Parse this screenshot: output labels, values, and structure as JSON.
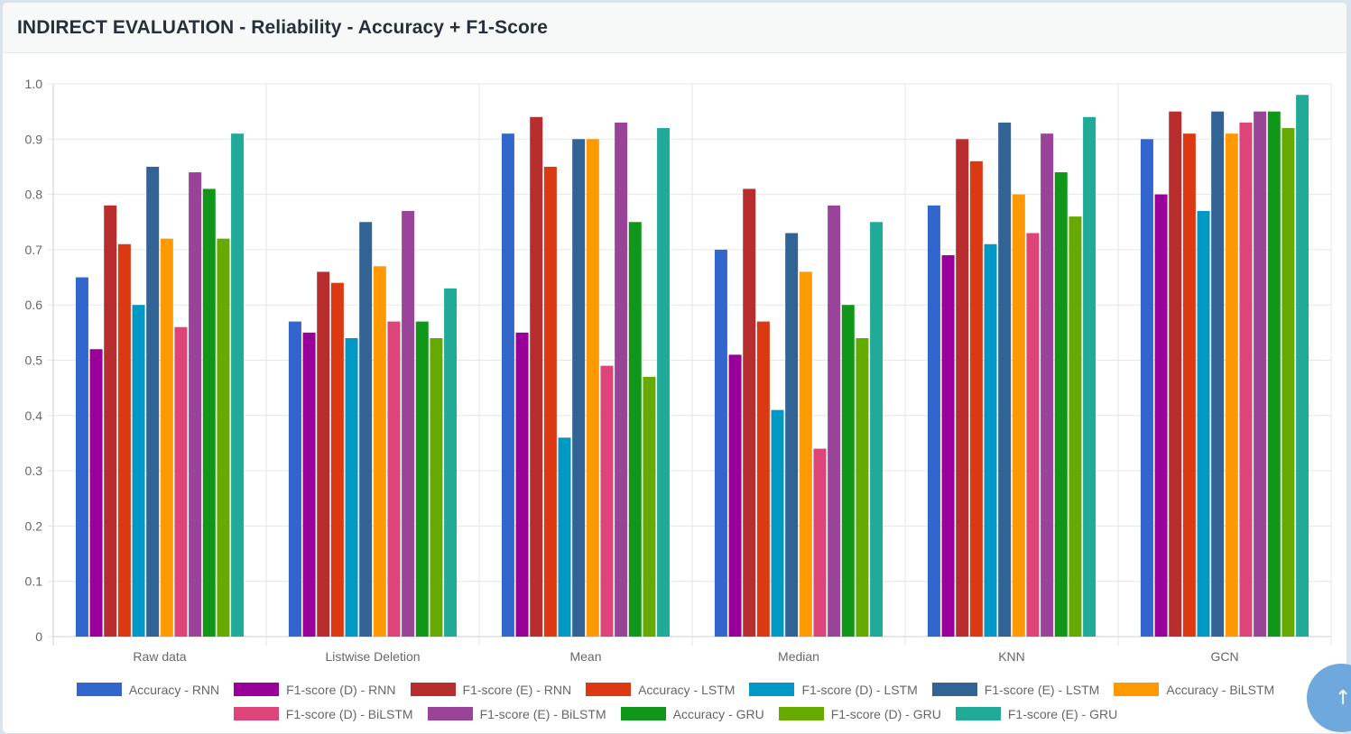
{
  "card": {
    "title": "INDIRECT EVALUATION - Reliability - Accuracy + F1-Score"
  },
  "scroll_top": {
    "icon": "arrow-up-icon",
    "glyph": "↑"
  },
  "chart_data": {
    "type": "bar",
    "title": "",
    "xlabel": "",
    "ylabel": "",
    "ylim": [
      0,
      1.0
    ],
    "yticks": [
      "0",
      "0.1",
      "0.2",
      "0.3",
      "0.4",
      "0.5",
      "0.6",
      "0.7",
      "0.8",
      "0.9",
      "1.0"
    ],
    "grid": true,
    "legend_position": "bottom",
    "categories": [
      "Raw data",
      "Listwise Deletion",
      "Mean",
      "Median",
      "KNN",
      "GCN"
    ],
    "series": [
      {
        "name": "Accuracy - RNN",
        "color": "#3366cc",
        "values": [
          0.65,
          0.57,
          0.91,
          0.7,
          0.78,
          0.9
        ]
      },
      {
        "name": "F1-score (D) - RNN",
        "color": "#990099",
        "values": [
          0.52,
          0.55,
          0.55,
          0.51,
          0.69,
          0.8
        ]
      },
      {
        "name": "F1-score (E) - RNN",
        "color": "#b82e2e",
        "values": [
          0.78,
          0.66,
          0.94,
          0.81,
          0.9,
          0.95
        ]
      },
      {
        "name": "Accuracy - LSTM",
        "color": "#dc3912",
        "values": [
          0.71,
          0.64,
          0.85,
          0.57,
          0.86,
          0.91
        ]
      },
      {
        "name": "F1-score (D) - LSTM",
        "color": "#0099c6",
        "values": [
          0.6,
          0.54,
          0.36,
          0.41,
          0.71,
          0.77
        ]
      },
      {
        "name": "F1-score (E) - LSTM",
        "color": "#316395",
        "values": [
          0.85,
          0.75,
          0.9,
          0.73,
          0.93,
          0.95
        ]
      },
      {
        "name": "Accuracy - BiLSTM",
        "color": "#ff9900",
        "values": [
          0.72,
          0.67,
          0.9,
          0.66,
          0.8,
          0.91
        ]
      },
      {
        "name": "F1-score (D) - BiLSTM",
        "color": "#dd4477",
        "values": [
          0.56,
          0.57,
          0.49,
          0.34,
          0.73,
          0.93
        ]
      },
      {
        "name": "F1-score (E) - BiLSTM",
        "color": "#994499",
        "values": [
          0.84,
          0.77,
          0.93,
          0.78,
          0.91,
          0.95
        ]
      },
      {
        "name": "Accuracy - GRU",
        "color": "#109618",
        "values": [
          0.81,
          0.57,
          0.75,
          0.6,
          0.84,
          0.95
        ]
      },
      {
        "name": "F1-score (D) - GRU",
        "color": "#66aa00",
        "values": [
          0.72,
          0.54,
          0.47,
          0.54,
          0.76,
          0.92
        ]
      },
      {
        "name": "F1-score (E) - GRU",
        "color": "#22aa99",
        "values": [
          0.91,
          0.63,
          0.92,
          0.75,
          0.94,
          0.98
        ]
      }
    ]
  }
}
